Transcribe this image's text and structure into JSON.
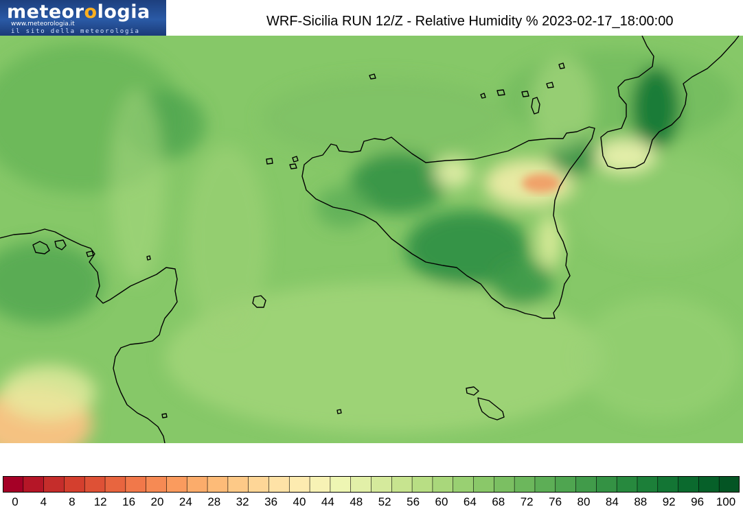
{
  "logo": {
    "brand_left": "meteor",
    "brand_sun": "o",
    "brand_right": "logia",
    "url": "www.meteorologia.it",
    "tagline": "il sito della meteorologia",
    "sun_color": "#ffb020"
  },
  "title": "WRF-Sicilia RUN 12/Z - Relative Humidity % 2023-02-17_18:00:00",
  "map": {
    "variable": "relative-humidity",
    "background_color": "#86c868",
    "coast_color": "#000000"
  },
  "colorbar": {
    "min": 0,
    "max": 100,
    "step": 2,
    "labels": [
      "0",
      "4",
      "8",
      "12",
      "16",
      "20",
      "24",
      "28",
      "32",
      "36",
      "40",
      "44",
      "48",
      "52",
      "56",
      "60",
      "64",
      "68",
      "72",
      "76",
      "80",
      "84",
      "88",
      "92",
      "96",
      "100"
    ],
    "colors": [
      "#a50026",
      "#b51627",
      "#c52d2b",
      "#d43f2e",
      "#de5136",
      "#e8653f",
      "#f1784a",
      "#f68a54",
      "#fa9b5e",
      "#fbac6b",
      "#fdbb78",
      "#fdc987",
      "#fed697",
      "#fee2a6",
      "#fdebb0",
      "#f7f2b5",
      "#eef6b3",
      "#e2f0a8",
      "#d5ea9c",
      "#c7e48f",
      "#b8de84",
      "#a9d77b",
      "#99d072",
      "#8ac869",
      "#7bbf62",
      "#6cb75c",
      "#5dae56",
      "#4fa550",
      "#419b4a",
      "#349244",
      "#27893e",
      "#1c7f39",
      "#137534",
      "#0b6a2e",
      "#066029",
      "#045524"
    ]
  }
}
